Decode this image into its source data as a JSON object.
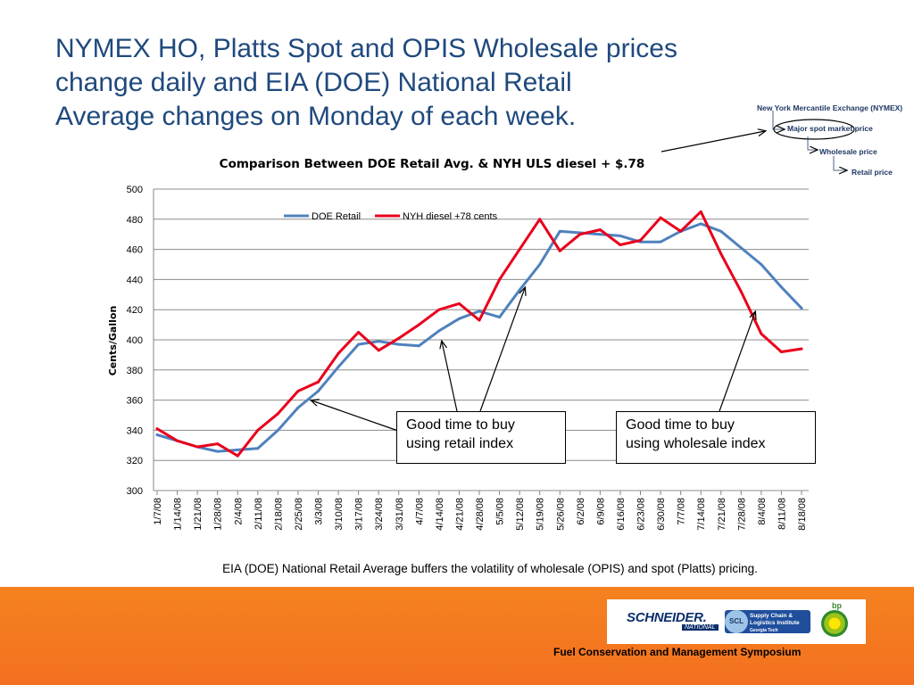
{
  "headline": {
    "line1": "NYMEX HO, Platts Spot and OPIS Wholesale prices",
    "line2": "change daily and EIA (DOE) National Retail",
    "line3": "Average changes on Monday of each week."
  },
  "inset": {
    "level1": "New York Mercantile Exchange (NYMEX)",
    "level2": "Major spot market price",
    "level3": "Wholesale price",
    "level4": "Retail price"
  },
  "callouts": {
    "retail": {
      "line1": "Good time to buy",
      "line2": "using retail index"
    },
    "wholesale": {
      "line1": "Good time to buy",
      "line2": "using wholesale index"
    }
  },
  "caption": "EIA (DOE) National Retail Average buffers the volatility of wholesale (OPIS) and spot (Platts) pricing.",
  "footer": {
    "symposium": "Fuel Conservation and Management Symposium",
    "schneider": "SCHNEIDER.",
    "schneider_sub": "NATIONAL",
    "scl_mark": "SCL",
    "scl_line1": "Supply Chain &",
    "scl_line2": "Logistics Institute",
    "scl_line3": "Georgia Tech",
    "bp": "bp"
  },
  "colors": {
    "title": "#1f497d",
    "doe_series": "#4f81bd",
    "nyh_series": "#e8001c",
    "footer": "#f47920",
    "grid": "#8c8c8c"
  },
  "chart_data": {
    "type": "line",
    "title": "Comparison Between DOE Retail Avg. & NYH ULS diesel  + $.78",
    "xlabel": "",
    "ylabel": "Cents/Gallon",
    "ylim": [
      300,
      500
    ],
    "yticks": [
      300,
      320,
      340,
      360,
      380,
      400,
      420,
      440,
      460,
      480,
      500
    ],
    "grid": "horizontal",
    "legend": "top-left",
    "x": [
      "1/7/08",
      "1/14/08",
      "1/21/08",
      "1/28/08",
      "2/4/08",
      "2/11/08",
      "2/18/08",
      "2/25/08",
      "3/3/08",
      "3/10/08",
      "3/17/08",
      "3/24/08",
      "3/31/08",
      "4/7/08",
      "4/14/08",
      "4/21/08",
      "4/28/08",
      "5/5/08",
      "5/12/08",
      "5/19/08",
      "5/26/08",
      "6/2/08",
      "6/9/08",
      "6/16/08",
      "6/23/08",
      "6/30/08",
      "7/7/08",
      "7/14/08",
      "7/21/08",
      "7/28/08",
      "8/4/08",
      "8/11/08",
      "8/18/08"
    ],
    "series": [
      {
        "name": "DOE Retail",
        "color": "#4f81bd",
        "values": [
          337,
          333,
          329,
          326,
          327,
          328,
          340,
          355,
          366,
          382,
          397,
          399,
          397,
          396,
          406,
          414,
          419,
          415,
          433,
          450,
          472,
          471,
          470,
          469,
          465,
          465,
          472,
          477,
          472,
          461,
          450,
          435,
          421
        ]
      },
      {
        "name": "NYH diesel +78 cents",
        "color": "#e8001c",
        "values": [
          341,
          333,
          329,
          331,
          323,
          340,
          351,
          366,
          372,
          391,
          405,
          393,
          401,
          410,
          420,
          424,
          413,
          440,
          460,
          480,
          459,
          470,
          473,
          463,
          466,
          481,
          472,
          485,
          457,
          432,
          404,
          392,
          394
        ]
      }
    ],
    "annotations": [
      "Good time to buy using retail index",
      "Good time to buy using wholesale index"
    ]
  }
}
